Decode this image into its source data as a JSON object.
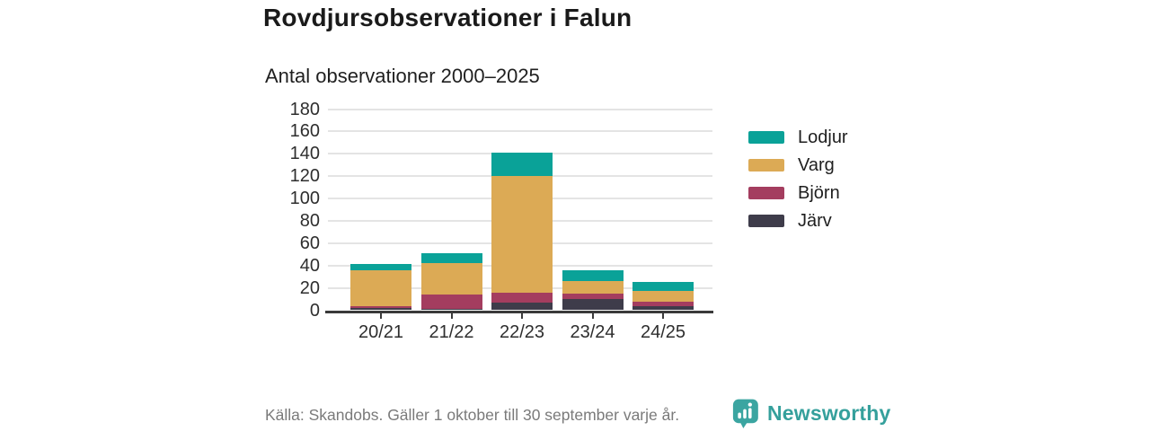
{
  "title": "Rovdjursobservationer i Falun",
  "subtitle": "Antal observationer 2000–2025",
  "footer": {
    "source": "Källa: Skandobs. Gäller 1 oktober till 30 september varje år.",
    "brand": "Newsworthy"
  },
  "colors": {
    "lodjur_teal": "#0aa298",
    "varg_gold": "#dcaa55",
    "bjorn_maroon": "#a43d5f",
    "jarv_dark": "#3e3c4a",
    "grid": "#e4e4e4",
    "axis": "#3a3a3a",
    "text": "#1a1a1a",
    "muted_text": "#7a7a7a",
    "brand_teal": "#35a09c"
  },
  "chart_data": {
    "type": "bar",
    "stacked": true,
    "title": "Rovdjursobservationer i Falun",
    "subtitle": "Antal observationer 2000–2025",
    "categories": [
      "20/21",
      "21/22",
      "22/23",
      "23/24",
      "24/25"
    ],
    "series": [
      {
        "name": "Järv",
        "color": "#3e3c4a",
        "values": [
          2,
          1,
          7,
          10,
          4
        ]
      },
      {
        "name": "Björn",
        "color": "#a43d5f",
        "values": [
          2,
          13,
          9,
          5,
          4
        ]
      },
      {
        "name": "Varg",
        "color": "#dcaa55",
        "values": [
          32,
          28,
          104,
          11,
          9
        ]
      },
      {
        "name": "Lodjur",
        "color": "#0aa298",
        "values": [
          5,
          9,
          21,
          10,
          8
        ]
      }
    ],
    "totals": [
      41,
      51,
      141,
      36,
      25
    ],
    "legend_order": [
      "Lodjur",
      "Varg",
      "Björn",
      "Järv"
    ],
    "legend_position": "right",
    "xlabel": "",
    "ylabel": "",
    "ylim": [
      0,
      180
    ],
    "ytick_step": 20,
    "grid": true
  }
}
